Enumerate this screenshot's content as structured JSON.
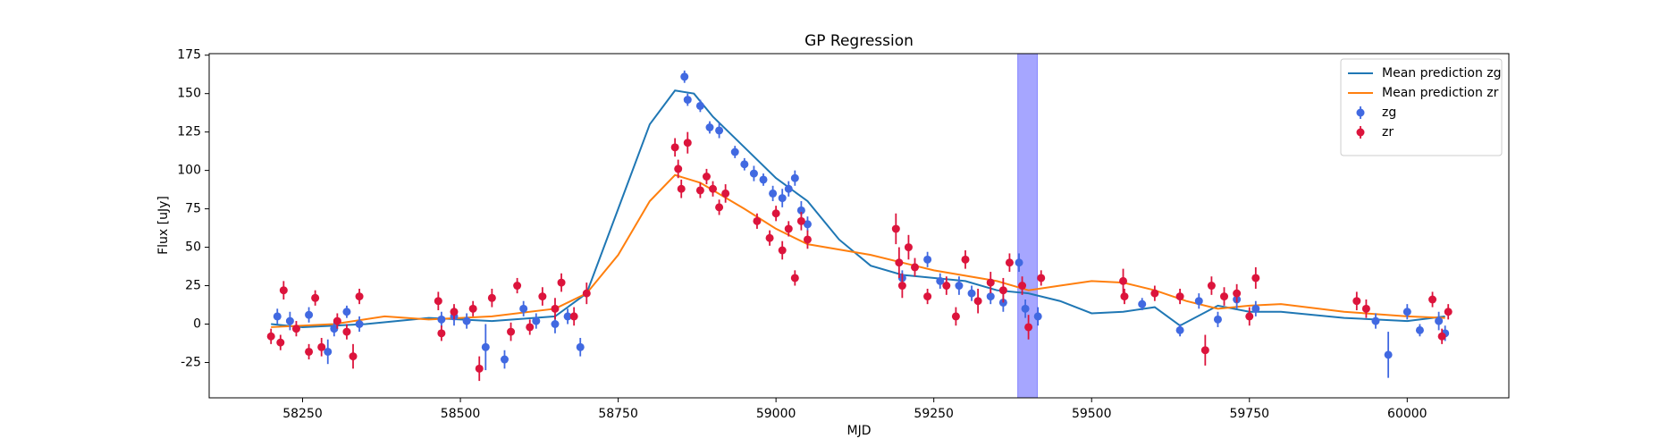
{
  "chart_data": {
    "type": "scatter",
    "title": "GP Regression",
    "xlabel": "MJD",
    "ylabel": "Flux [uJy]",
    "xlim": [
      58102,
      60161
    ],
    "ylim": [
      -48,
      176
    ],
    "xticks": [
      58250,
      58500,
      58750,
      59000,
      59250,
      59500,
      59750,
      60000
    ],
    "yticks": [
      -25,
      0,
      25,
      50,
      75,
      100,
      125,
      150,
      175
    ],
    "legend": "upper right",
    "span": {
      "xrange": [
        59383,
        59414
      ],
      "color": "#0000ff"
    },
    "series": [
      {
        "name": "Mean prediction zg",
        "type": "line",
        "color": "#1f77b4",
        "x": [
          58200,
          58250,
          58350,
          58450,
          58550,
          58650,
          58700,
          58750,
          58800,
          58840,
          58870,
          58900,
          58950,
          59000,
          59050,
          59100,
          59150,
          59200,
          59300,
          59350,
          59400,
          59450,
          59500,
          59550,
          59600,
          59640,
          59700,
          59750,
          59800,
          59900,
          60000,
          60060
        ],
        "values": [
          0,
          -2,
          0,
          4,
          2,
          5,
          20,
          75,
          130,
          152,
          150,
          135,
          115,
          95,
          80,
          55,
          38,
          32,
          28,
          22,
          20,
          15,
          7,
          8,
          11,
          -1,
          12,
          8,
          8,
          4,
          2,
          5
        ]
      },
      {
        "name": "Mean prediction zr",
        "type": "line",
        "color": "#ff7f0e",
        "x": [
          58200,
          58300,
          58380,
          58450,
          58550,
          58650,
          58700,
          58750,
          58800,
          58840,
          58880,
          58950,
          59000,
          59050,
          59150,
          59250,
          59350,
          59400,
          59450,
          59500,
          59550,
          59600,
          59650,
          59700,
          59750,
          59800,
          59900,
          60000,
          60060
        ],
        "values": [
          -2,
          0,
          5,
          3,
          5,
          10,
          20,
          45,
          80,
          97,
          92,
          75,
          62,
          52,
          45,
          35,
          28,
          22,
          25,
          28,
          27,
          22,
          15,
          10,
          12,
          13,
          8,
          5,
          4
        ]
      },
      {
        "name": "zg",
        "type": "errorbar",
        "color": "#4169e1",
        "x": [
          58210,
          58230,
          58260,
          58290,
          58300,
          58320,
          58340,
          58470,
          58490,
          58510,
          58540,
          58570,
          58600,
          58620,
          58650,
          58670,
          58690,
          58855,
          58860,
          58880,
          58895,
          58910,
          58935,
          58950,
          58965,
          58980,
          58995,
          59010,
          59020,
          59030,
          59040,
          59050,
          59200,
          59240,
          59260,
          59290,
          59310,
          59340,
          59360,
          59385,
          59395,
          59415,
          59580,
          59640,
          59670,
          59700,
          59730,
          59760,
          59950,
          59970,
          60000,
          60020,
          60050,
          60060
        ],
        "values": [
          5,
          2,
          6,
          -18,
          -3,
          8,
          0,
          3,
          5,
          2,
          -15,
          -23,
          10,
          2,
          0,
          5,
          -15,
          161,
          146,
          142,
          128,
          126,
          112,
          104,
          98,
          94,
          85,
          82,
          88,
          95,
          74,
          65,
          30,
          42,
          28,
          25,
          20,
          18,
          14,
          40,
          10,
          5,
          13,
          -4,
          15,
          3,
          16,
          10,
          2,
          -20,
          8,
          -4,
          2,
          -6
        ],
        "errors": [
          5,
          6,
          5,
          8,
          5,
          4,
          5,
          5,
          6,
          5,
          15,
          6,
          5,
          5,
          6,
          5,
          6,
          4,
          4,
          4,
          4,
          5,
          4,
          4,
          5,
          4,
          5,
          6,
          5,
          5,
          6,
          5,
          5,
          5,
          5,
          6,
          5,
          5,
          6,
          6,
          6,
          6,
          4,
          4,
          5,
          5,
          6,
          5,
          5,
          15,
          5,
          4,
          6,
          5
        ]
      },
      {
        "name": "zr",
        "type": "errorbar",
        "color": "#dc143c",
        "x": [
          58200,
          58215,
          58220,
          58240,
          58260,
          58270,
          58280,
          58305,
          58320,
          58330,
          58340,
          58465,
          58470,
          58490,
          58520,
          58530,
          58550,
          58580,
          58590,
          58610,
          58630,
          58650,
          58660,
          58680,
          58700,
          58840,
          58845,
          58850,
          58860,
          58880,
          58890,
          58900,
          58910,
          58920,
          58970,
          58990,
          59000,
          59010,
          59020,
          59030,
          59040,
          59050,
          59190,
          59195,
          59200,
          59210,
          59220,
          59240,
          59270,
          59285,
          59300,
          59320,
          59340,
          59360,
          59370,
          59390,
          59400,
          59420,
          59550,
          59552,
          59600,
          59640,
          59680,
          59690,
          59710,
          59730,
          59750,
          59760,
          59920,
          59935,
          60040,
          60055,
          60065
        ],
        "values": [
          -8,
          -12,
          22,
          -3,
          -18,
          17,
          -15,
          2,
          -5,
          -21,
          18,
          15,
          -6,
          8,
          10,
          -29,
          17,
          -5,
          25,
          -2,
          18,
          10,
          27,
          5,
          20,
          115,
          101,
          88,
          118,
          87,
          96,
          88,
          76,
          85,
          67,
          56,
          72,
          48,
          62,
          30,
          67,
          55,
          62,
          40,
          25,
          50,
          37,
          18,
          25,
          5,
          42,
          15,
          27,
          22,
          40,
          25,
          -2,
          30,
          28,
          18,
          20,
          18,
          -17,
          25,
          18,
          20,
          5,
          30,
          15,
          10,
          16,
          -8,
          8
        ],
        "errors": [
          5,
          5,
          6,
          5,
          5,
          5,
          6,
          5,
          5,
          8,
          5,
          6,
          5,
          5,
          5,
          8,
          6,
          6,
          5,
          5,
          6,
          7,
          6,
          6,
          7,
          6,
          6,
          6,
          7,
          5,
          5,
          5,
          5,
          6,
          5,
          5,
          5,
          6,
          5,
          5,
          6,
          6,
          10,
          10,
          8,
          8,
          6,
          5,
          6,
          6,
          6,
          8,
          7,
          8,
          6,
          6,
          8,
          5,
          8,
          5,
          5,
          5,
          10,
          6,
          6,
          6,
          6,
          7,
          6,
          6,
          5,
          5,
          5
        ]
      }
    ]
  }
}
